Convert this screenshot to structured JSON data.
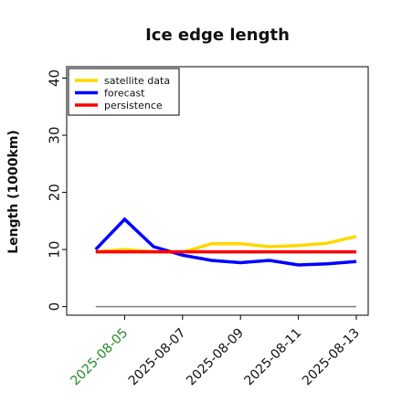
{
  "chart_data": {
    "type": "line",
    "title": "Ice edge length",
    "xlabel": "",
    "ylabel": "Length (1000km)",
    "ylim": [
      -1.5,
      42
    ],
    "yticks": [
      0,
      10,
      20,
      30,
      40
    ],
    "ytick_labels": [
      "0",
      "10",
      "20",
      "30",
      "40"
    ],
    "xlim": [
      "2025-08-03",
      "2025-08-13"
    ],
    "x": [
      "2025-08-04",
      "2025-08-05",
      "2025-08-06",
      "2025-08-07",
      "2025-08-08",
      "2025-08-09",
      "2025-08-10",
      "2025-08-11",
      "2025-08-12",
      "2025-08-13"
    ],
    "xticks": [
      "2025-08-05",
      "2025-08-07",
      "2025-08-09",
      "2025-08-11",
      "2025-08-13"
    ],
    "highlighted_xtick": "2025-08-05",
    "highlight_color": "#228B22",
    "series": [
      {
        "name": "satellite data",
        "color": "#FFD700",
        "values": [
          9.6,
          10.0,
          9.6,
          9.5,
          11.0,
          11.0,
          10.5,
          10.7,
          11.1,
          12.3
        ]
      },
      {
        "name": "forecast",
        "color": "#0000FF",
        "values": [
          10.0,
          15.3,
          10.5,
          9.0,
          8.1,
          7.7,
          8.1,
          7.3,
          7.5,
          7.9
        ]
      },
      {
        "name": "persistence",
        "color": "#FF0000",
        "values": [
          9.6,
          9.6,
          9.6,
          9.6,
          9.6,
          9.6,
          9.6,
          9.6,
          9.6,
          9.6
        ]
      }
    ],
    "zero_line": {
      "x_start": "2025-08-04",
      "x_end": "2025-08-13",
      "value": 0,
      "color": "#808080"
    },
    "legend_position": "top-left",
    "grid": false
  }
}
